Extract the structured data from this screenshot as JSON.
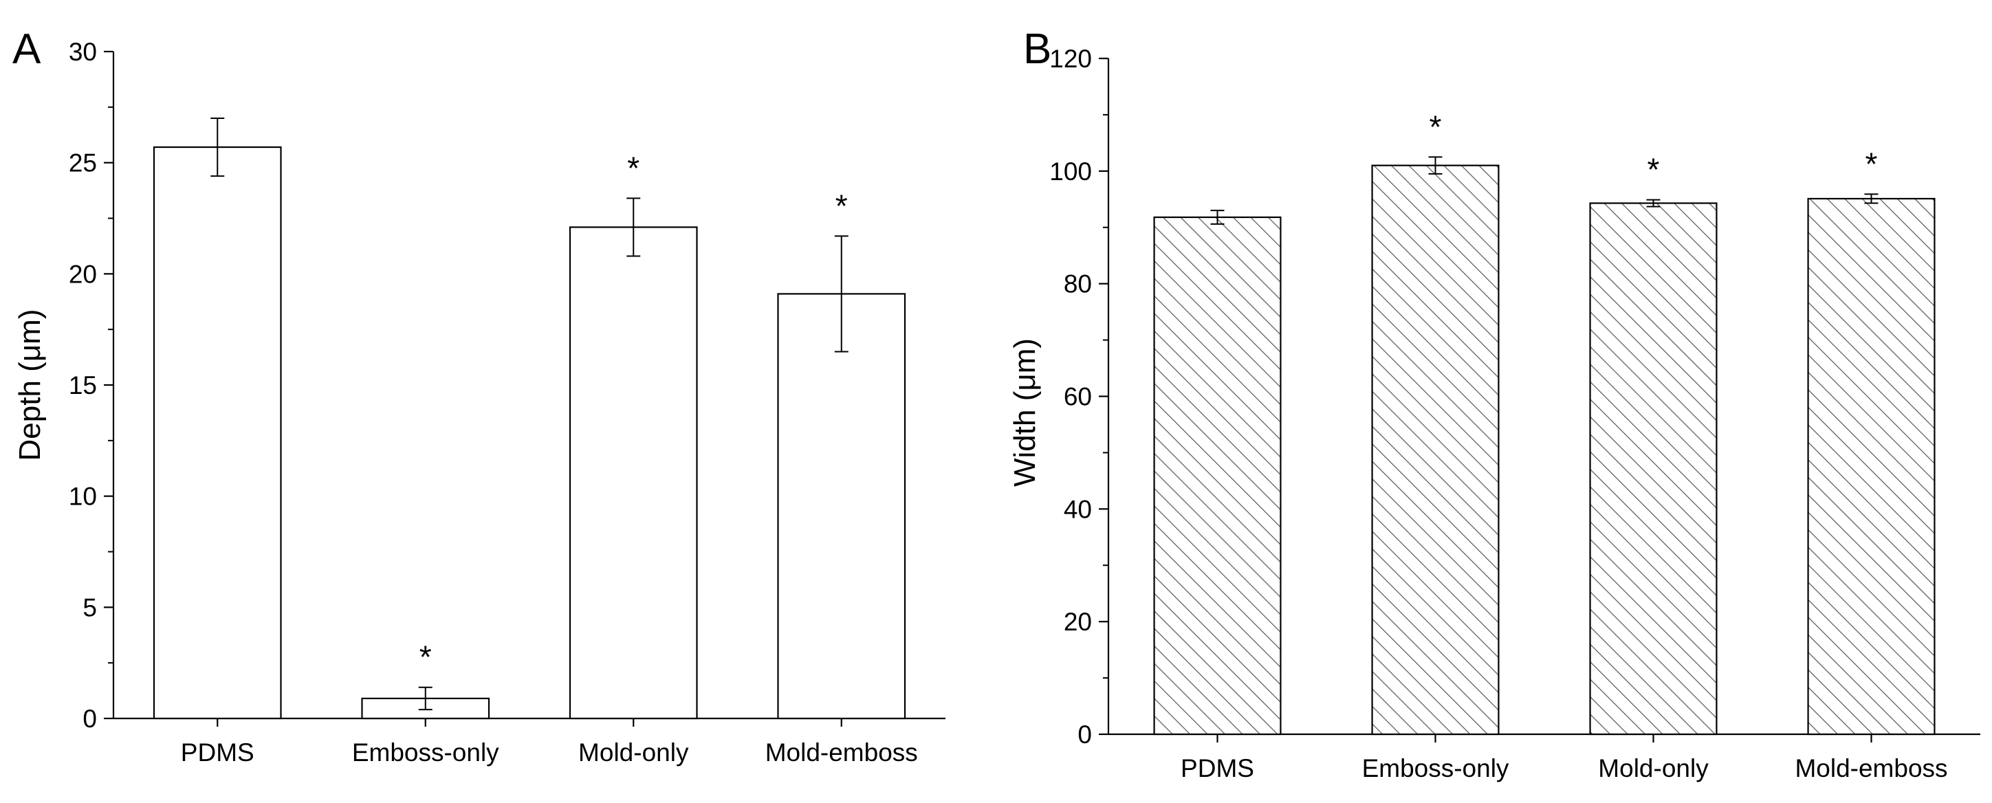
{
  "chart_data": [
    {
      "panel": "A",
      "type": "bar",
      "fill": "solid-white",
      "categories": [
        "PDMS",
        "Emboss-only",
        "Mold-only",
        "Mold-emboss"
      ],
      "values": [
        25.7,
        0.9,
        22.1,
        19.1
      ],
      "errors": [
        1.3,
        0.5,
        1.3,
        2.6
      ],
      "significance": [
        "",
        "*",
        "*",
        "*"
      ],
      "ylabel": "Depth (μm)",
      "xlabel": "",
      "ylim": [
        0,
        30
      ],
      "yticks": [
        0,
        5,
        10,
        15,
        20,
        25,
        30
      ],
      "grid": false
    },
    {
      "panel": "B",
      "type": "bar",
      "fill": "diagonal-hatch",
      "categories": [
        "PDMS",
        "Emboss-only",
        "Mold-only",
        "Mold-emboss"
      ],
      "values": [
        91.8,
        101.0,
        94.3,
        95.1
      ],
      "errors": [
        1.2,
        1.5,
        0.6,
        0.8
      ],
      "significance": [
        "",
        "*",
        "*",
        "*"
      ],
      "ylabel": "Width (μm)",
      "xlabel": "",
      "ylim": [
        0,
        120
      ],
      "yticks": [
        0,
        20,
        40,
        60,
        80,
        100,
        120
      ],
      "grid": false
    }
  ],
  "colors": {
    "axis": "#000000",
    "bar_edge": "#000000",
    "bar_fill_a": "#ffffff",
    "hatch_line": "#555555"
  }
}
